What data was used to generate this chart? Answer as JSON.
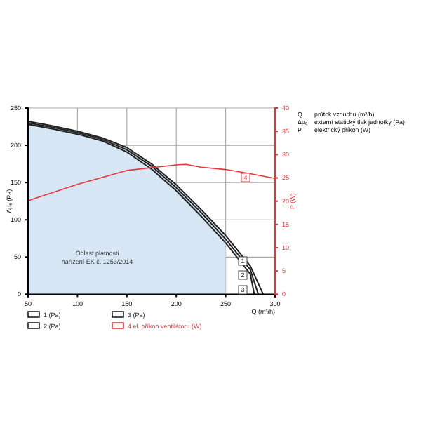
{
  "chart_data": {
    "type": "line",
    "xlabel": "Q (m³/h)",
    "ylabel": "Δpₑ (Pa)",
    "y2label": "P (W)",
    "xlim": [
      50,
      300
    ],
    "xticks": [
      50,
      100,
      150,
      200,
      250,
      300
    ],
    "ylim": [
      0,
      250
    ],
    "yticks": [
      0,
      50,
      100,
      150,
      200,
      250
    ],
    "y2lim": [
      0,
      40
    ],
    "y2ticks": [
      0,
      5,
      10,
      15,
      20,
      25,
      30,
      35,
      40
    ],
    "grid": true,
    "legend": "bottom left",
    "series": [
      {
        "type": "area",
        "color": "#d6e6f5",
        "x": [
          50,
          75,
          100,
          125,
          150,
          175,
          200,
          225,
          250,
          250
        ],
        "values": [
          232,
          226,
          219,
          210,
          197,
          175,
          147,
          114,
          79,
          0
        ]
      },
      {
        "name": "1 (Pa)",
        "color": "#222222",
        "x": [
          50,
          75,
          100,
          125,
          150,
          175,
          200,
          225,
          250,
          275,
          288
        ],
        "values": [
          232,
          226,
          219,
          210,
          197,
          175,
          147,
          114,
          79,
          38,
          0
        ]
      },
      {
        "name": "2 (Pa)",
        "color": "#222222",
        "x": [
          50,
          75,
          100,
          125,
          150,
          175,
          200,
          225,
          250,
          275,
          283
        ],
        "values": [
          230,
          224,
          217,
          208,
          194,
          172,
          143,
          110,
          74,
          33,
          0
        ]
      },
      {
        "name": "3 (Pa)",
        "color": "#222222",
        "x": [
          50,
          75,
          100,
          125,
          150,
          175,
          200,
          225,
          250,
          275,
          279
        ],
        "values": [
          228,
          222,
          215,
          206,
          191,
          168,
          139,
          105,
          69,
          27,
          0
        ]
      },
      {
        "name": "4 el. příkon ventilátoru (W)",
        "color": "#e8343a",
        "axis": "y2",
        "x": [
          50,
          100,
          150,
          175,
          200,
          210,
          225,
          250,
          270,
          300
        ],
        "values": [
          20.1,
          23.6,
          26.6,
          27.2,
          27.8,
          27.9,
          27.3,
          26.8,
          26.1,
          24.9
        ]
      }
    ],
    "annotations": [
      "Q",
      "průtok vzduchu (m³/h)",
      "Δpₑ",
      "externí statický tlak jednotky (Pa)",
      "P",
      "elektrický příkon (W)",
      "Oblast platnosti",
      "nařízení EK č. 1253/2014",
      "1",
      "2",
      "3",
      "4"
    ]
  }
}
